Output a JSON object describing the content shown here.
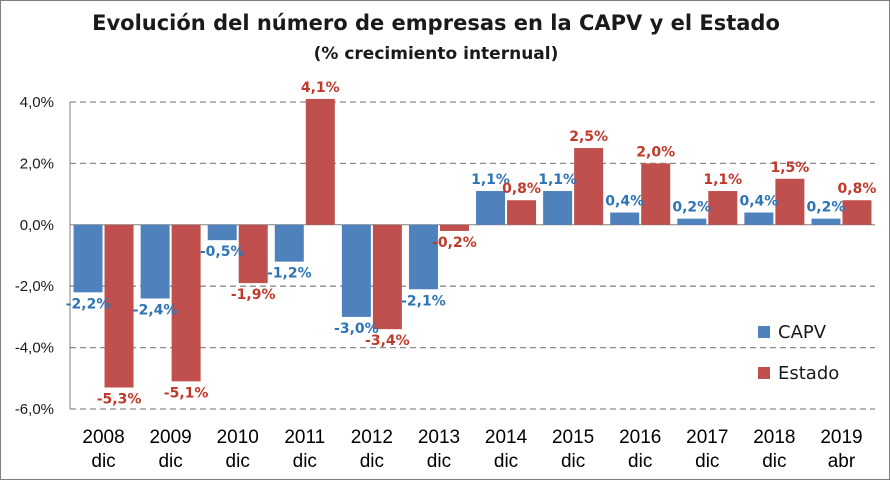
{
  "chart_data": {
    "type": "bar",
    "title": "Evolución del número de empresas en la CAPV y el Estado",
    "subtitle": "(% crecimiento internual)",
    "categories": [
      [
        "2008",
        "dic"
      ],
      [
        "2009",
        "dic"
      ],
      [
        "2010",
        "dic"
      ],
      [
        "2011",
        "dic"
      ],
      [
        "2012",
        "dic"
      ],
      [
        "2013",
        "dic"
      ],
      [
        "2014",
        "dic"
      ],
      [
        "2015",
        "dic"
      ],
      [
        "2016",
        "dic"
      ],
      [
        "2017",
        "dic"
      ],
      [
        "2018",
        "dic"
      ],
      [
        "2019",
        "abr"
      ]
    ],
    "series": [
      {
        "name": "CAPV",
        "color": "#4f81bd",
        "values": [
          -2.2,
          -2.4,
          -0.5,
          -1.2,
          -3.0,
          -2.1,
          1.1,
          1.1,
          0.4,
          0.2,
          0.4,
          0.2
        ],
        "labels": [
          "-2,2%",
          "-2,4%",
          "-0,5%",
          "-1,2%",
          "-3,0%",
          "-2,1%",
          "1,1%",
          "1,1%",
          "0,4%",
          "0,2%",
          "0,4%",
          "0,2%"
        ]
      },
      {
        "name": "Estado",
        "color": "#c0504d",
        "values": [
          -5.3,
          -5.1,
          -1.9,
          4.1,
          -3.4,
          -0.2,
          0.8,
          2.5,
          2.0,
          1.1,
          1.5,
          0.8
        ],
        "labels": [
          "-5,3%",
          "-5,1%",
          "-1,9%",
          "4,1%",
          "-3,4%",
          "-0,2%",
          "0,8%",
          "2,5%",
          "2,0%",
          "1,1%",
          "1,5%",
          "0,8%"
        ]
      }
    ],
    "ylim": [
      -6.0,
      4.0
    ],
    "yticks": [
      4.0,
      2.0,
      0.0,
      -2.0,
      -4.0,
      -6.0
    ],
    "ytick_labels": [
      "4,0%",
      "2,0%",
      "0,0%",
      "-2,0%",
      "-4,0%",
      "-6,0%"
    ],
    "grid": true,
    "legend": "bottom-right",
    "xlabel": "",
    "ylabel": ""
  }
}
